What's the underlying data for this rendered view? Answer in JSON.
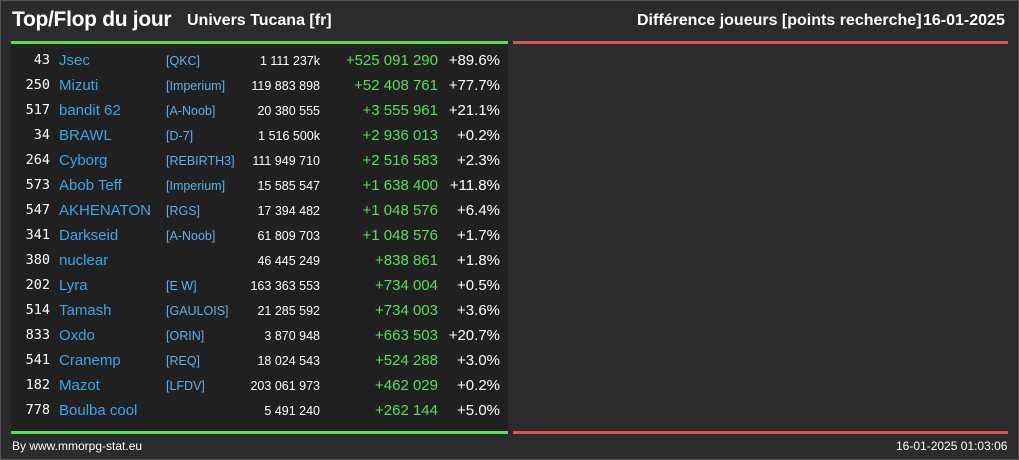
{
  "header": {
    "title": "Top/Flop du jour",
    "universe": "Univers Tucana [fr]",
    "metric": "Différence joueurs [points recherche]",
    "date": "16-01-2025"
  },
  "colors": {
    "background": "#2b2b2b",
    "panel": "#202020",
    "top_accent": "#55e055",
    "flop_accent": "#d9534f",
    "player_name": "#3aa6ea",
    "gain": "#55e055"
  },
  "top_rows": [
    {
      "rank": "43",
      "name": "Jsec",
      "alliance": "[QKC]",
      "points": "1 111 237k",
      "diff": "+525 091 290",
      "pct": "+89.6%"
    },
    {
      "rank": "250",
      "name": "Mizuti",
      "alliance": "[Imperium]",
      "points": "119 883 898",
      "diff": "+52 408 761",
      "pct": "+77.7%"
    },
    {
      "rank": "517",
      "name": "bandit 62",
      "alliance": "[A-Noob]",
      "points": "20 380 555",
      "diff": "+3 555 961",
      "pct": "+21.1%"
    },
    {
      "rank": "34",
      "name": "BRAWL",
      "alliance": "[D-7]",
      "points": "1 516 500k",
      "diff": "+2 936 013",
      "pct": "+0.2%"
    },
    {
      "rank": "264",
      "name": "Cyborg",
      "alliance": "[REBIRTH3]",
      "points": "111 949 710",
      "diff": "+2 516 583",
      "pct": "+2.3%"
    },
    {
      "rank": "573",
      "name": "Abob Teff",
      "alliance": "[Imperium]",
      "points": "15 585 547",
      "diff": "+1 638 400",
      "pct": "+11.8%"
    },
    {
      "rank": "547",
      "name": "AKHENATON",
      "alliance": "[RGS]",
      "points": "17 394 482",
      "diff": "+1 048 576",
      "pct": "+6.4%"
    },
    {
      "rank": "341",
      "name": "Darkseid",
      "alliance": "[A-Noob]",
      "points": "61 809 703",
      "diff": "+1 048 576",
      "pct": "+1.7%"
    },
    {
      "rank": "380",
      "name": "nuclear",
      "alliance": "",
      "points": "46 445 249",
      "diff": "+838 861",
      "pct": "+1.8%"
    },
    {
      "rank": "202",
      "name": "Lyra",
      "alliance": "[E W]",
      "points": "163 363 553",
      "diff": "+734 004",
      "pct": "+0.5%"
    },
    {
      "rank": "514",
      "name": "Tamash",
      "alliance": "[GAULOIS]",
      "points": "21 285 592",
      "diff": "+734 003",
      "pct": "+3.6%"
    },
    {
      "rank": "833",
      "name": "Oxdo",
      "alliance": "[ORIN]",
      "points": "3 870 948",
      "diff": "+663 503",
      "pct": "+20.7%"
    },
    {
      "rank": "541",
      "name": "Cranemp",
      "alliance": "[REQ]",
      "points": "18 024 543",
      "diff": "+524 288",
      "pct": "+3.0%"
    },
    {
      "rank": "182",
      "name": "Mazot",
      "alliance": "[LFDV]",
      "points": "203 061 973",
      "diff": "+462 029",
      "pct": "+0.2%"
    },
    {
      "rank": "778",
      "name": "Boulba cool",
      "alliance": "",
      "points": "5 491 240",
      "diff": "+262 144",
      "pct": "+5.0%"
    }
  ],
  "footer": {
    "source": "By www.mmorpg-stat.eu",
    "timestamp": "16-01-2025 01:03:06"
  }
}
